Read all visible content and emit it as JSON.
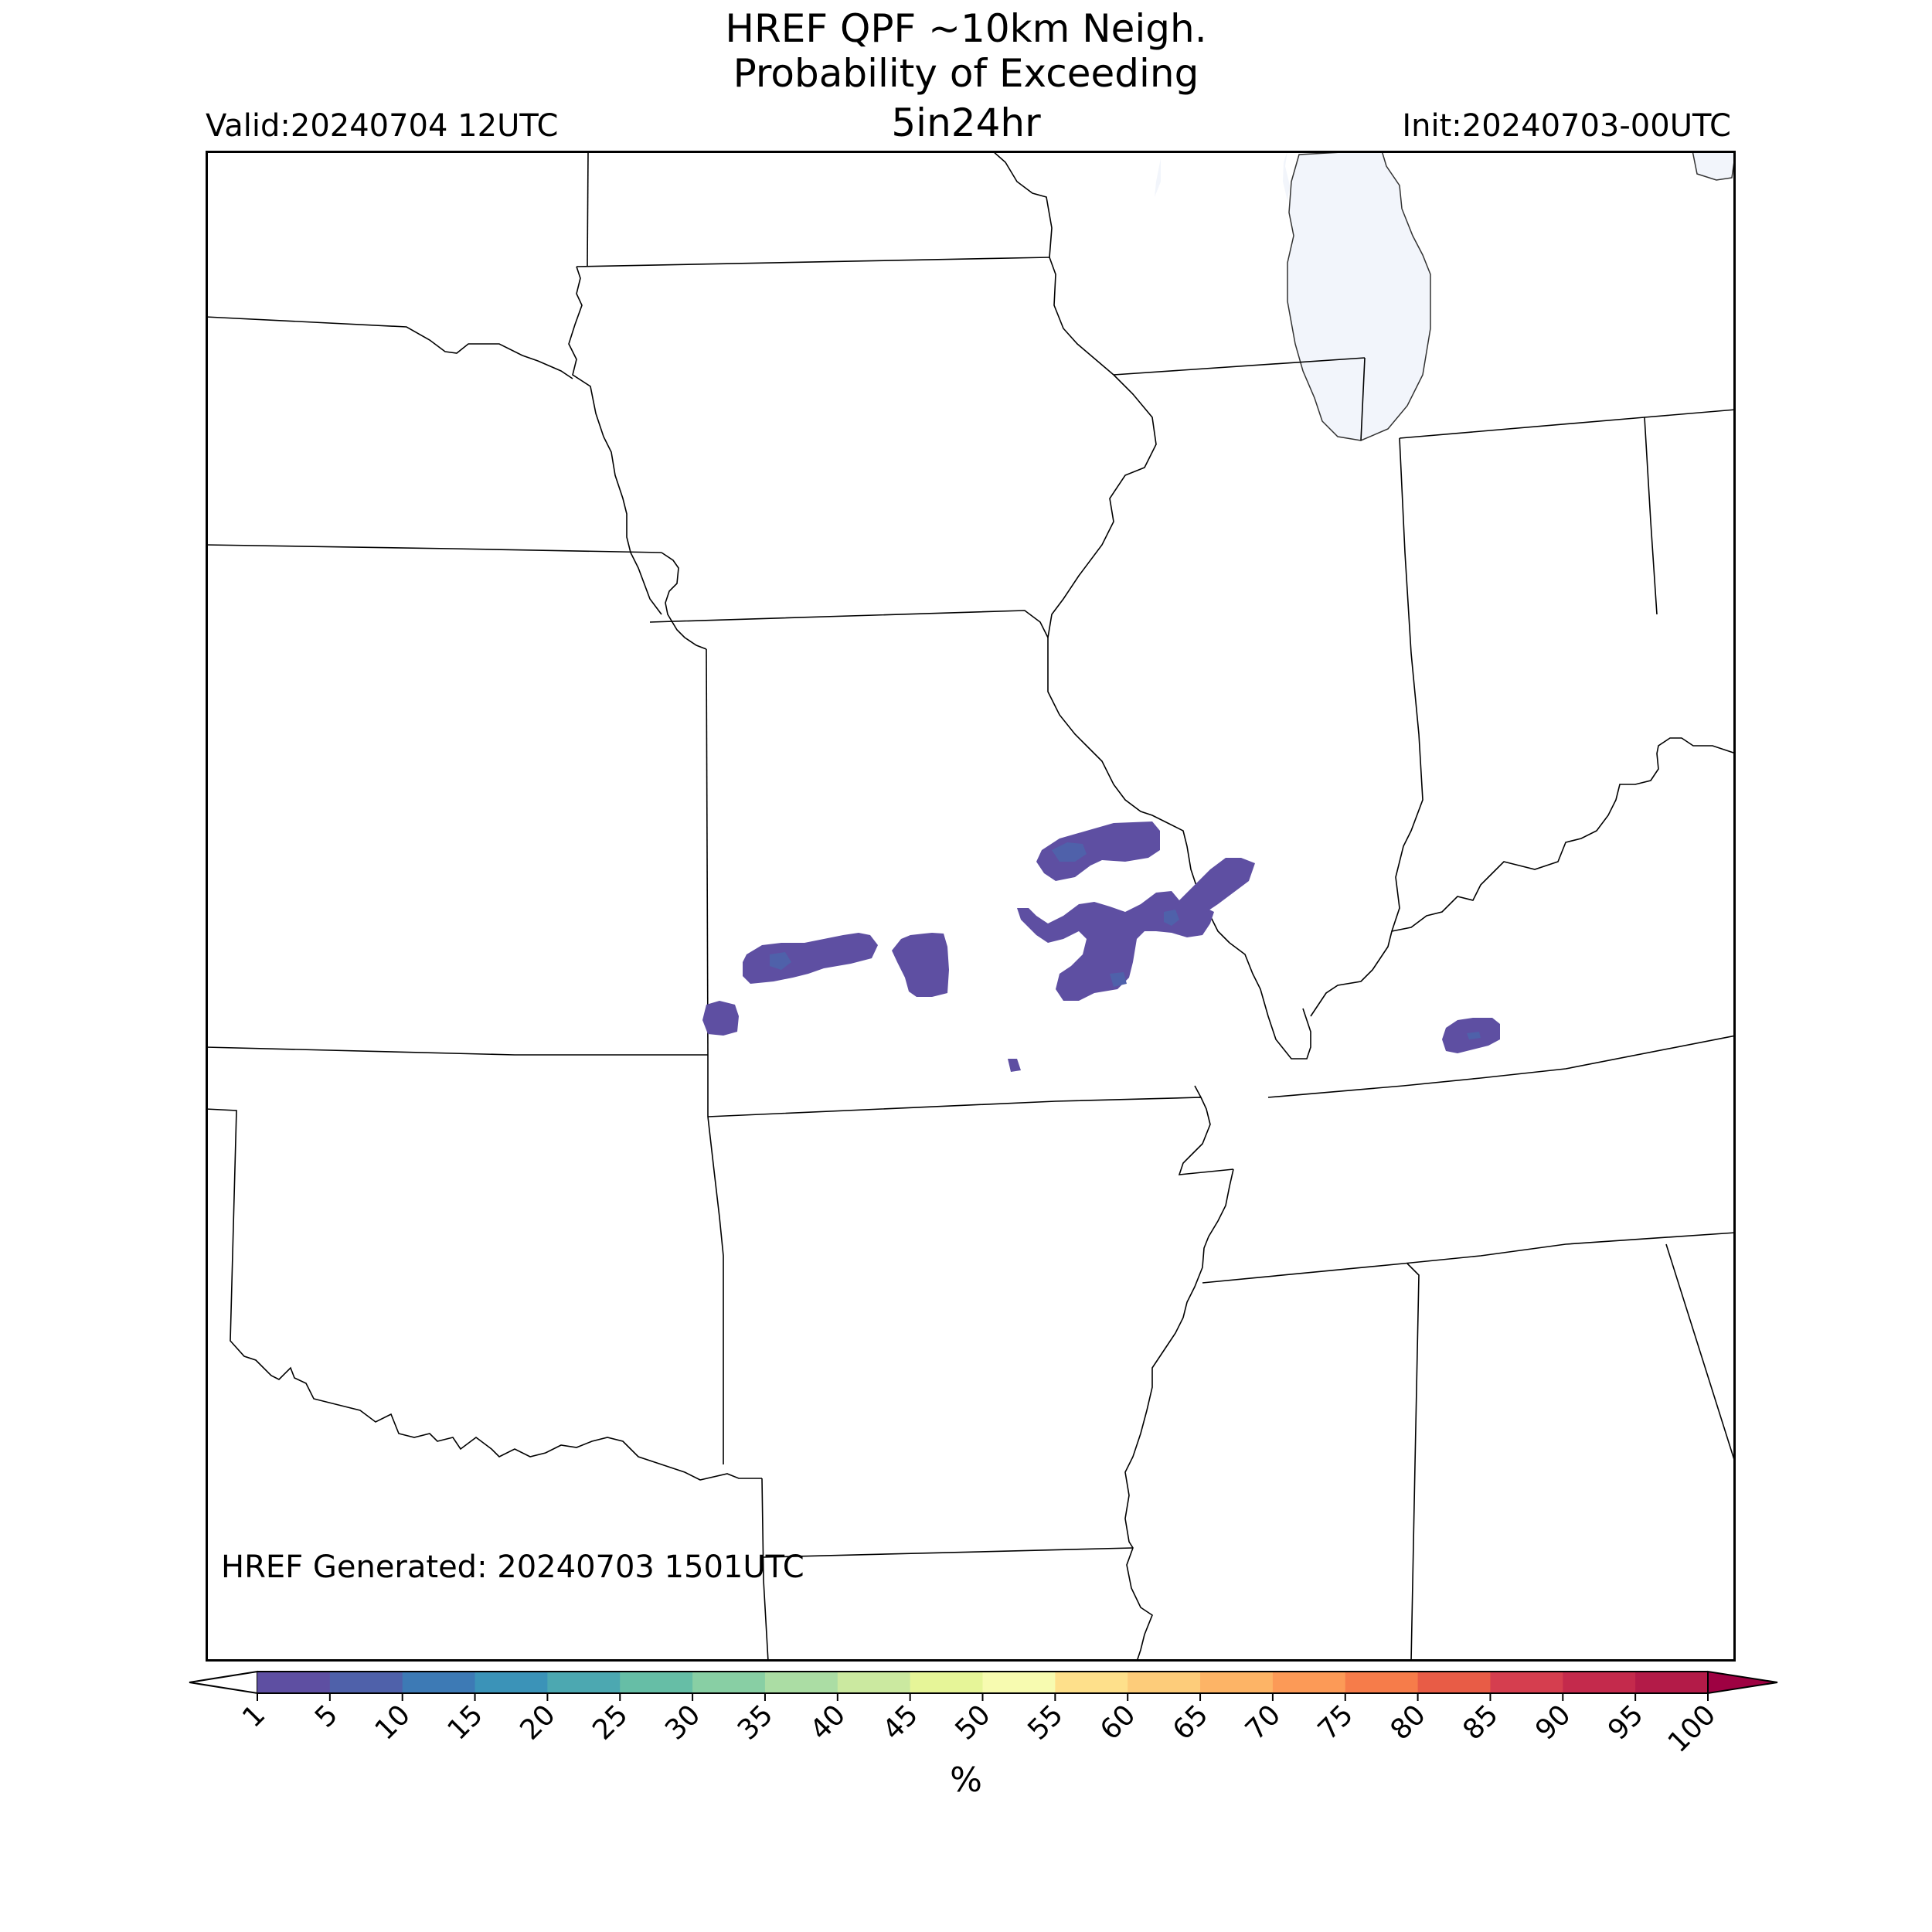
{
  "title": {
    "line1": "HREF QPF ~10km Neigh.",
    "line2": "Probability of Exceeding",
    "line3": "5in24hr"
  },
  "valid_label": "Valid:20240704 12UTC",
  "init_label": "Init:20240703-00UTC",
  "generated_label": "HREF Generated: 20240703 1501UTC",
  "colorbar": {
    "levels": [
      "1",
      "5",
      "10",
      "15",
      "20",
      "25",
      "30",
      "35",
      "40",
      "45",
      "50",
      "55",
      "60",
      "65",
      "70",
      "75",
      "80",
      "85",
      "90",
      "95",
      "100"
    ],
    "colors": [
      "#5e4fa2",
      "#4f61aa",
      "#3d7ab5",
      "#3b93b8",
      "#4ca8b1",
      "#66bea6",
      "#88cfa4",
      "#abdda4",
      "#cbe9a0",
      "#e6f598",
      "#f7fbb0",
      "#fee08b",
      "#fdcc7a",
      "#fdb466",
      "#fc9a57",
      "#f67c4a",
      "#e85c46",
      "#d53e4f",
      "#c42a4c",
      "#b31b48"
    ],
    "under_color": "#ffffff",
    "over_color": "#9e0142",
    "unit": "%"
  },
  "map_colors": {
    "lake": "#f2f5fb",
    "border": "#000000",
    "prob_low": "#5e4fa2",
    "prob_mid": "#3d7ab5"
  }
}
